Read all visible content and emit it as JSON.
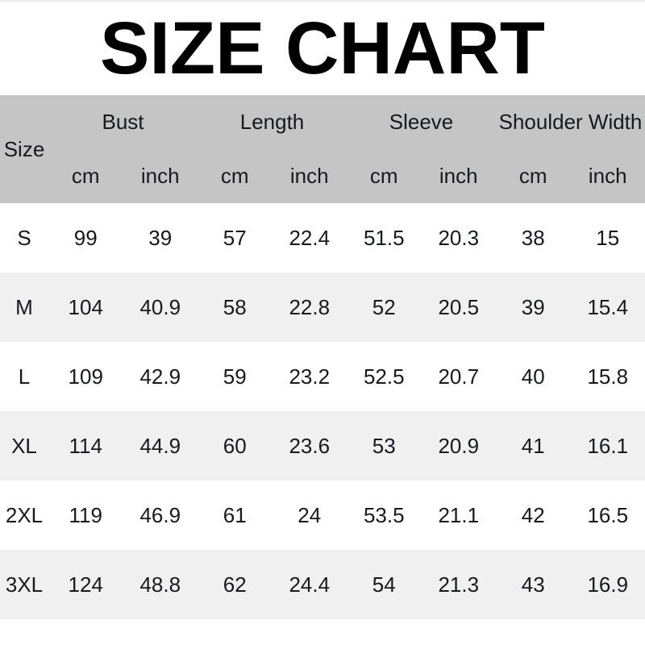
{
  "title": "SIZE CHART",
  "colors": {
    "header_bg": "#c5c5c5",
    "row_bg": "#ffffff",
    "row_alt_bg": "#f0f0f0",
    "text": "#17191e",
    "title_color": "#000000"
  },
  "chart_data": {
    "type": "table",
    "title": "SIZE CHART",
    "header": {
      "size_label": "Size",
      "groups": [
        "Bust",
        "Length",
        "Sleeve",
        "Shoulder Width"
      ],
      "units": [
        "cm",
        "inch",
        "cm",
        "inch",
        "cm",
        "inch",
        "cm",
        "inch"
      ]
    },
    "columns": [
      "Size",
      "Bust cm",
      "Bust inch",
      "Length cm",
      "Length inch",
      "Sleeve cm",
      "Sleeve inch",
      "Shoulder Width cm",
      "Shoulder Width inch"
    ],
    "rows": [
      {
        "size": "S",
        "values": [
          "99",
          "39",
          "57",
          "22.4",
          "51.5",
          "20.3",
          "38",
          "15"
        ]
      },
      {
        "size": "M",
        "values": [
          "104",
          "40.9",
          "58",
          "22.8",
          "52",
          "20.5",
          "39",
          "15.4"
        ]
      },
      {
        "size": "L",
        "values": [
          "109",
          "42.9",
          "59",
          "23.2",
          "52.5",
          "20.7",
          "40",
          "15.8"
        ]
      },
      {
        "size": "XL",
        "values": [
          "114",
          "44.9",
          "60",
          "23.6",
          "53",
          "20.9",
          "41",
          "16.1"
        ]
      },
      {
        "size": "2XL",
        "values": [
          "119",
          "46.9",
          "61",
          "24",
          "53.5",
          "21.1",
          "42",
          "16.5"
        ]
      },
      {
        "size": "3XL",
        "values": [
          "124",
          "48.8",
          "62",
          "24.4",
          "54",
          "21.3",
          "43",
          "16.9"
        ]
      }
    ]
  }
}
